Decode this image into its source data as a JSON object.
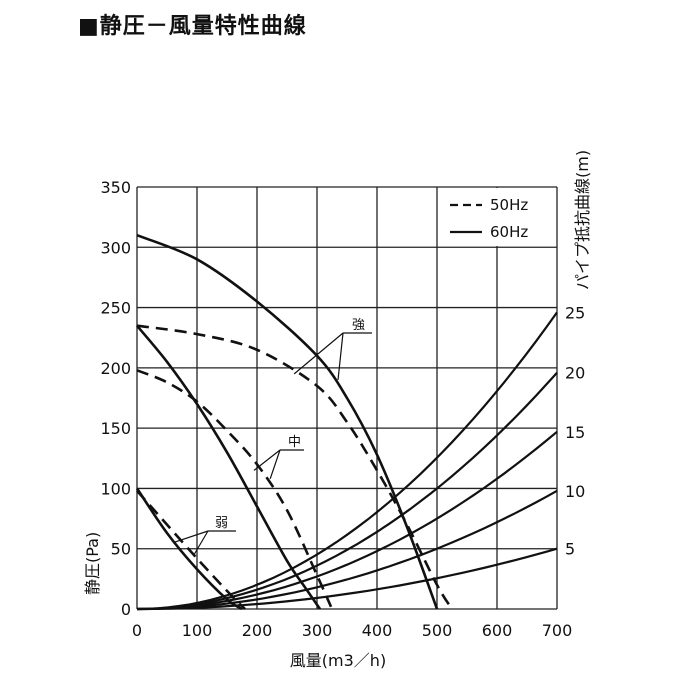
{
  "title": "■静圧－風量特性曲線",
  "chart_data": {
    "type": "line",
    "xlabel": "風量(m3／h)",
    "ylabel_left": "静圧(Pa)",
    "ylabel_right": "パイプ抵抗曲線(m)",
    "xlim": [
      0,
      700
    ],
    "ylim": [
      0,
      350
    ],
    "x_ticks": [
      "0",
      "100",
      "200",
      "300",
      "400",
      "500",
      "600",
      "700"
    ],
    "y_ticks": [
      "0",
      "50",
      "100",
      "150",
      "200",
      "250",
      "300",
      "350"
    ],
    "right_ticks": [
      "5",
      "10",
      "15",
      "20",
      "25"
    ],
    "grid": true,
    "legend": {
      "position": "top-right",
      "entries": [
        {
          "label": "50Hz",
          "style": "dashed"
        },
        {
          "label": "60Hz",
          "style": "solid"
        }
      ]
    },
    "series": [
      {
        "name": "強",
        "style": "solid",
        "x": [
          0,
          100,
          200,
          300,
          350,
          400,
          450,
          500
        ],
        "y": [
          310,
          290,
          255,
          210,
          175,
          128,
          68,
          0
        ]
      },
      {
        "name": "強",
        "style": "dashed",
        "x": [
          0,
          100,
          200,
          300,
          350,
          400,
          450,
          500,
          525
        ],
        "y": [
          235,
          228,
          215,
          185,
          155,
          115,
          70,
          20,
          0
        ]
      },
      {
        "name": "中",
        "style": "solid",
        "x": [
          0,
          50,
          100,
          150,
          200,
          250,
          280,
          305
        ],
        "y": [
          235,
          205,
          170,
          130,
          85,
          40,
          18,
          0
        ]
      },
      {
        "name": "中",
        "style": "dashed",
        "x": [
          0,
          50,
          100,
          150,
          200,
          250,
          300,
          325
        ],
        "y": [
          198,
          188,
          172,
          148,
          120,
          82,
          28,
          0
        ]
      },
      {
        "name": "弱",
        "style": "solid",
        "x": [
          0,
          50,
          100,
          150,
          175
        ],
        "y": [
          100,
          63,
          33,
          8,
          0
        ]
      },
      {
        "name": "弱",
        "style": "dashed",
        "x": [
          0,
          50,
          100,
          150,
          180
        ],
        "y": [
          98,
          70,
          42,
          15,
          0
        ]
      }
    ],
    "pipe_curves": [
      {
        "name": "5",
        "x": [
          0,
          700
        ],
        "y_at_700": 50
      },
      {
        "name": "10",
        "x": [
          0,
          700
        ],
        "y_at_700": 98
      },
      {
        "name": "15",
        "x": [
          0,
          700
        ],
        "y_at_700": 147
      },
      {
        "name": "20",
        "x": [
          0,
          700
        ],
        "y_at_700": 196
      },
      {
        "name": "25",
        "x": [
          0,
          700
        ],
        "y_at_700": 246
      }
    ],
    "annotations": [
      "強",
      "中",
      "弱"
    ]
  }
}
